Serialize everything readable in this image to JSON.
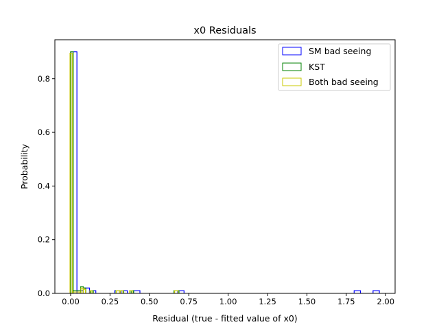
{
  "chart_data": {
    "type": "bar",
    "subtype": "histogram-step",
    "title": "x0 Residuals",
    "xlabel": "Residual (true - fitted value of x0)",
    "ylabel": "Probability",
    "xlim": [
      -0.1,
      2.06
    ],
    "ylim": [
      0,
      0.945
    ],
    "xticks": [
      0.0,
      0.25,
      0.5,
      0.75,
      1.0,
      1.25,
      1.5,
      1.75,
      2.0
    ],
    "xtick_labels": [
      "0.00",
      "0.25",
      "0.50",
      "0.75",
      "1.00",
      "1.25",
      "1.50",
      "1.75",
      "2.00"
    ],
    "yticks": [
      0.0,
      0.2,
      0.4,
      0.6,
      0.8
    ],
    "ytick_labels": [
      "0.0",
      "0.2",
      "0.4",
      "0.6",
      "0.8"
    ],
    "grid": false,
    "legend_position": "top-right",
    "series": [
      {
        "name": "SM bad seeing",
        "color": "#0000ff",
        "bins": [
          [
            0.0,
            0.04,
            0.9
          ],
          [
            0.04,
            0.08,
            0.01
          ],
          [
            0.08,
            0.12,
            0.02
          ],
          [
            0.12,
            0.16,
            0.01
          ],
          [
            0.28,
            0.32,
            0.01
          ],
          [
            0.32,
            0.36,
            0.01
          ],
          [
            0.4,
            0.44,
            0.01
          ],
          [
            0.68,
            0.72,
            0.01
          ],
          [
            1.8,
            1.84,
            0.01
          ],
          [
            1.92,
            1.96,
            0.01
          ]
        ]
      },
      {
        "name": "KST",
        "color": "#008000",
        "bins": [
          [
            0.0,
            0.016,
            0.9
          ],
          [
            0.016,
            0.064,
            0.01
          ],
          [
            0.064,
            0.08,
            0.025
          ],
          [
            0.08,
            0.096,
            0.02
          ],
          [
            0.128,
            0.144,
            0.01
          ],
          [
            0.288,
            0.336,
            0.01
          ],
          [
            0.384,
            0.4,
            0.01
          ],
          [
            0.656,
            0.688,
            0.01
          ]
        ]
      },
      {
        "name": "Both bad seeing",
        "color": "#c8c800",
        "bins": [
          [
            -0.004,
            0.01,
            0.895
          ],
          [
            0.01,
            0.06,
            0.005
          ],
          [
            0.066,
            0.08,
            0.02
          ],
          [
            0.08,
            0.094,
            0.015
          ],
          [
            0.122,
            0.136,
            0.01
          ],
          [
            0.29,
            0.31,
            0.01
          ],
          [
            0.316,
            0.332,
            0.01
          ],
          [
            0.374,
            0.392,
            0.01
          ],
          [
            0.66,
            0.682,
            0.01
          ]
        ]
      }
    ]
  }
}
